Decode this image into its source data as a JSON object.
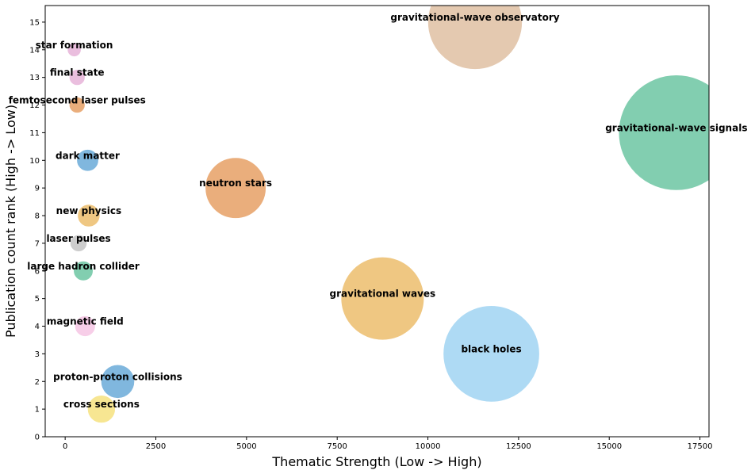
{
  "chart_data": {
    "type": "scatter",
    "title": "",
    "xlabel": "Thematic Strength (Low -> High)",
    "ylabel": "Publication count rank (High -> Low)",
    "xlim": [
      -550,
      17750
    ],
    "ylim": [
      0,
      15.6
    ],
    "x_ticks": [
      0,
      2500,
      5000,
      7500,
      10000,
      12500,
      15000,
      17500
    ],
    "y_ticks": [
      0,
      1,
      2,
      3,
      4,
      5,
      6,
      7,
      8,
      9,
      10,
      11,
      12,
      13,
      14,
      15
    ],
    "grid": false,
    "legend": "none",
    "points": [
      {
        "label": "cross sections",
        "x": 1000,
        "y": 1,
        "size": 1000,
        "color": "#f6e27f"
      },
      {
        "label": "proton-proton collisions",
        "x": 1450,
        "y": 2,
        "size": 1450,
        "color": "#6aaad8"
      },
      {
        "label": "black holes",
        "x": 11750,
        "y": 3,
        "size": 11750,
        "color": "#a0d4f2"
      },
      {
        "label": "magnetic field",
        "x": 550,
        "y": 4,
        "size": 550,
        "color": "#f6c6e4"
      },
      {
        "label": "gravitational waves",
        "x": 8750,
        "y": 5,
        "size": 8750,
        "color": "#ecbd6c"
      },
      {
        "label": "large hadron collider",
        "x": 500,
        "y": 6,
        "size": 500,
        "color": "#6cc6a2"
      },
      {
        "label": "laser pulses",
        "x": 370,
        "y": 7,
        "size": 370,
        "color": "#c4c4c4"
      },
      {
        "label": "new physics",
        "x": 650,
        "y": 8,
        "size": 650,
        "color": "#ecbd6c"
      },
      {
        "label": "neutron stars",
        "x": 4700,
        "y": 9,
        "size": 4700,
        "color": "#e6a065"
      },
      {
        "label": "dark matter",
        "x": 620,
        "y": 10,
        "size": 620,
        "color": "#6aaad8"
      },
      {
        "label": "gravitational-wave signals",
        "x": 16850,
        "y": 11,
        "size": 16850,
        "color": "#6cc6a2"
      },
      {
        "label": "femtosecond laser pulses",
        "x": 330,
        "y": 12,
        "size": 330,
        "color": "#e6a065"
      },
      {
        "label": "final state",
        "x": 330,
        "y": 13,
        "size": 330,
        "color": "#e6b3d8"
      },
      {
        "label": "star formation",
        "x": 250,
        "y": 14,
        "size": 250,
        "color": "#e6b3d8"
      },
      {
        "label": "gravitational-wave observatory",
        "x": 11300,
        "y": 15,
        "size": 11300,
        "color": "#dfc0a2"
      }
    ]
  }
}
